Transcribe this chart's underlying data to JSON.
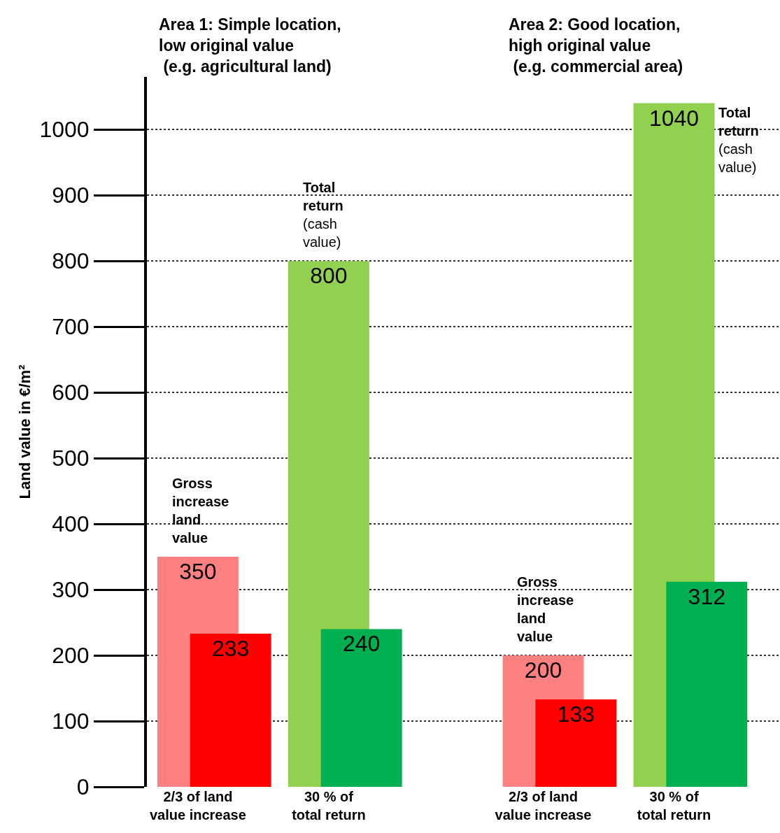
{
  "chart_data": {
    "type": "bar",
    "categories": [
      "2/3 of land\nvalue increase",
      "30 % of\ntotal return",
      "2/3 of land\nvalue increase",
      "30 % of\ntotal return"
    ],
    "series": [
      {
        "colors": [
          "#ff8080",
          "#92d050",
          "#ff8080",
          "#92d050"
        ],
        "values": [
          350,
          800,
          200,
          1040
        ]
      },
      {
        "colors": [
          "#ff0000",
          "#00b050",
          "#ff0000",
          "#00b050"
        ],
        "values": [
          233,
          240,
          133,
          312
        ]
      }
    ],
    "ylabel": "Land value in €/m²",
    "ylim": [
      0,
      1080
    ],
    "yticks": [
      0,
      100,
      200,
      300,
      400,
      500,
      600,
      700,
      800,
      900,
      1000
    ],
    "grid": "y",
    "data_labels": true,
    "annotations": [
      "Area 1: Simple location,\nlow original value\n (e.g. agricultural land)",
      "Area 2: Good location,\nhigh original value\n (e.g. commercial area)",
      "Gross\nincrease\nland\nvalue",
      "Total\nreturn\n(cash\nvalue)",
      "Gross\nincrease\nland\nvalue",
      "Total\nreturn\n(cash\nvalue)"
    ]
  }
}
